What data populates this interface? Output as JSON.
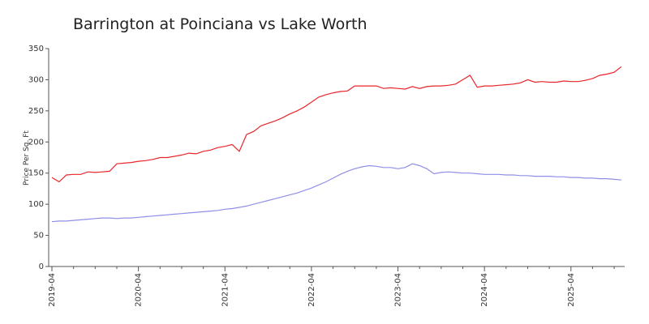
{
  "chart_data": {
    "type": "line",
    "title": "Barrington at Poinciana vs Lake Worth",
    "y_label": "Price Per Sq. Ft",
    "categories": [
      "2019-04",
      null,
      null,
      null,
      null,
      null,
      null,
      null,
      null,
      null,
      null,
      null,
      "2020-04",
      null,
      null,
      null,
      null,
      null,
      null,
      null,
      null,
      null,
      null,
      null,
      "2021-04",
      null,
      null,
      null,
      null,
      null,
      null,
      null,
      null,
      null,
      null,
      null,
      "2022-04",
      null,
      null,
      null,
      null,
      null,
      null,
      null,
      null,
      null,
      null,
      null,
      "2023-04",
      null,
      null,
      null,
      null,
      null,
      null,
      null,
      null,
      null,
      null,
      null,
      "2024-04",
      null,
      null,
      null,
      null,
      null,
      null,
      null,
      null,
      null,
      null,
      null,
      "2025-04",
      null,
      null,
      null,
      null,
      null,
      null,
      null
    ],
    "series": [
      {
        "color": "#e8262a",
        "values": [
          143,
          136,
          147,
          148,
          148,
          152,
          151,
          152,
          153,
          165,
          166,
          167,
          169,
          170,
          172,
          175,
          175,
          177,
          179,
          182,
          181,
          185,
          187,
          191,
          193,
          196,
          185,
          212,
          217,
          226,
          230,
          234,
          239,
          245,
          250,
          256,
          264,
          272,
          276,
          279,
          281,
          282,
          290,
          290,
          290,
          290,
          286,
          287,
          286,
          285,
          289,
          286,
          289,
          290,
          290,
          291,
          293,
          300,
          307,
          288,
          290,
          290,
          291,
          292,
          293,
          295,
          300,
          296,
          297,
          296,
          296,
          298,
          297,
          297,
          299,
          302,
          307,
          309,
          312,
          321
        ]
      },
      {
        "color": "#8f8fe8",
        "values": [
          72,
          73,
          73,
          74,
          75,
          76,
          77,
          78,
          78,
          77,
          78,
          78,
          79,
          80,
          81,
          82,
          83,
          84,
          85,
          86,
          87,
          88,
          89,
          90,
          92,
          93,
          95,
          97,
          100,
          103,
          106,
          109,
          112,
          115,
          118,
          122,
          126,
          131,
          136,
          142,
          148,
          153,
          157,
          160,
          162,
          161,
          159,
          159,
          157,
          159,
          165,
          162,
          157,
          149,
          151,
          152,
          151,
          150,
          150,
          149,
          148,
          148,
          148,
          147,
          147,
          146,
          146,
          145,
          145,
          145,
          144,
          144,
          143,
          143,
          142,
          142,
          141,
          141,
          140,
          139
        ]
      }
    ],
    "ylim": [
      0,
      350
    ],
    "yticks": [
      0,
      50,
      100,
      150,
      200,
      250,
      300,
      350
    ]
  }
}
